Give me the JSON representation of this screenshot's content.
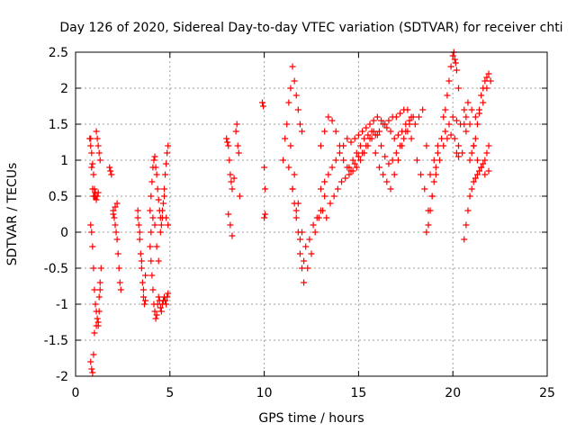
{
  "chart_data": {
    "type": "scatter",
    "title": "Day 126 of 2020, Sidereal Day-to-day VTEC variation (SDTVAR) for receiver chti",
    "xlabel": "GPS time / hours",
    "ylabel": "SDTVAR / TECUs",
    "xlim": [
      0,
      25
    ],
    "ylim": [
      -2,
      2.5
    ],
    "x_ticks": [
      0,
      5,
      10,
      15,
      20,
      25
    ],
    "x_tick_labels": [
      "0",
      "5",
      "10",
      "15",
      "20",
      "25"
    ],
    "y_ticks": [
      -2,
      -1.5,
      -1,
      -0.5,
      0,
      0.5,
      1,
      1.5,
      2,
      2.5
    ],
    "y_tick_labels": [
      "-2",
      "-1.5",
      "-1",
      "-0.5",
      "0",
      "0.5",
      "1",
      "1.5",
      "2",
      "2.5"
    ],
    "grid": true,
    "marker": "+",
    "series": [
      {
        "name": "SDTVAR",
        "color": "#ff0000",
        "x": [
          0.8,
          0.85,
          0.9,
          0.95,
          1.0,
          1.05,
          1.1,
          1.15,
          1.2,
          1.25,
          1.3,
          0.75,
          0.8,
          0.85,
          0.9,
          0.95,
          1.0,
          1.05,
          1.1,
          1.15,
          1.2,
          0.8,
          0.85,
          0.9,
          0.95,
          1.0,
          1.05,
          1.1,
          1.15,
          1.2,
          1.25,
          1.3,
          1.35,
          0.8,
          0.85,
          0.9,
          0.95,
          1.0,
          1.1,
          1.2,
          1.25,
          1.3,
          1.8,
          1.9,
          2.0,
          2.05,
          2.1,
          2.15,
          2.2,
          2.25,
          2.3,
          2.35,
          2.4,
          1.85,
          2.0,
          2.1,
          2.2,
          3.3,
          3.35,
          3.4,
          3.45,
          3.5,
          3.55,
          3.6,
          3.65,
          3.7,
          3.3,
          3.4,
          3.5,
          3.6,
          3.7,
          3.95,
          4.0,
          4.05,
          4.1,
          4.15,
          4.2,
          4.25,
          4.3,
          4.35,
          4.4,
          4.45,
          4.5,
          4.55,
          4.6,
          4.65,
          4.7,
          4.75,
          4.8,
          4.85,
          4.9,
          3.95,
          4.0,
          4.05,
          4.1,
          4.15,
          4.2,
          4.25,
          4.3,
          4.35,
          4.4,
          4.45,
          4.5,
          4.55,
          4.6,
          4.65,
          4.7,
          4.75,
          4.8,
          4.85,
          4.9,
          4.0,
          4.1,
          4.2,
          4.3,
          4.4,
          4.5,
          4.6,
          4.7,
          4.8,
          4.9,
          8.0,
          8.05,
          8.1,
          8.15,
          8.2,
          8.25,
          8.3,
          8.4,
          8.5,
          8.55,
          8.6,
          8.65,
          8.7,
          8.1,
          8.2,
          8.3,
          9.9,
          9.95,
          10.0,
          10.05,
          10.0,
          10.05,
          11.0,
          11.1,
          11.2,
          11.3,
          11.4,
          11.5,
          11.6,
          11.7,
          11.8,
          11.9,
          12.0,
          11.5,
          11.6,
          11.7,
          11.8,
          11.9,
          12.0,
          12.1,
          11.3,
          11.5,
          11.7,
          11.9,
          12.1,
          12.3,
          12.5,
          12.7,
          12.9,
          13.1,
          11.4,
          11.6,
          11.8,
          12.0,
          12.2,
          12.4,
          12.6,
          12.8,
          13.0,
          13.2,
          13.0,
          13.2,
          13.4,
          13.6,
          13.8,
          14.0,
          14.2,
          14.4,
          14.6,
          14.8,
          15.0,
          15.2,
          15.4,
          15.6,
          15.8,
          16.0,
          16.2,
          16.4,
          16.6,
          16.8,
          17.0,
          17.2,
          17.4,
          17.6,
          17.8,
          13.0,
          13.2,
          13.4,
          13.6,
          13.8,
          14.0,
          14.2,
          14.4,
          14.6,
          14.8,
          15.0,
          15.2,
          15.4,
          15.6,
          15.8,
          16.0,
          16.2,
          16.4,
          16.6,
          16.8,
          17.0,
          17.2,
          17.4,
          17.6,
          17.8,
          13.3,
          13.5,
          13.7,
          13.9,
          14.1,
          14.3,
          14.5,
          14.7,
          14.9,
          15.1,
          15.3,
          15.5,
          15.7,
          15.9,
          16.1,
          16.3,
          16.5,
          16.7,
          16.9,
          17.1,
          17.3,
          17.5,
          17.7,
          14.5,
          14.7,
          14.9,
          15.1,
          15.3,
          15.5,
          15.7,
          15.9,
          16.1,
          16.3,
          16.5,
          16.7,
          16.9,
          17.1,
          17.3,
          17.5,
          17.7,
          17.9,
          18.0,
          18.2,
          18.4,
          18.6,
          18.8,
          19.0,
          19.2,
          19.4,
          19.6,
          19.8,
          20.0,
          20.2,
          20.4,
          20.6,
          20.8,
          21.0,
          21.2,
          21.4,
          21.6,
          21.8,
          18.1,
          18.3,
          18.5,
          18.7,
          18.9,
          19.1,
          19.3,
          19.5,
          19.7,
          19.9,
          20.1,
          20.3,
          20.5,
          20.7,
          20.9,
          21.1,
          21.3,
          21.5,
          21.7,
          21.9,
          19.5,
          19.6,
          19.7,
          19.8,
          19.9,
          20.0,
          20.05,
          20.1,
          20.15,
          20.2,
          20.3,
          20.9,
          21.0,
          21.1,
          21.2,
          21.3,
          21.4,
          21.5,
          21.6,
          21.7,
          21.8,
          21.9,
          22.0,
          20.6,
          20.7,
          20.8,
          20.9,
          21.0,
          21.1,
          21.2,
          21.3,
          21.4,
          21.5,
          21.6,
          21.7,
          21.8,
          21.9,
          18.6,
          18.7,
          18.8,
          18.9,
          19.0,
          19.1,
          19.2,
          20.2,
          20.3,
          20.6,
          20.7
        ],
        "y": [
          1.3,
          0.9,
          0.6,
          0.5,
          0.5,
          0.55,
          1.4,
          1.3,
          1.2,
          1.1,
          1.0,
          1.3,
          1.2,
          1.1,
          0.95,
          0.8,
          0.6,
          0.5,
          0.45,
          0.5,
          0.55,
          0.1,
          0.0,
          -0.2,
          -0.5,
          -0.8,
          -1.0,
          -1.1,
          -1.2,
          -1.3,
          -0.9,
          -0.7,
          -0.5,
          -1.8,
          -1.9,
          -1.95,
          -1.7,
          -1.4,
          -1.3,
          -1.25,
          -1.1,
          -0.8,
          0.9,
          0.8,
          0.25,
          0.2,
          0.1,
          0.0,
          -0.1,
          -0.3,
          -0.5,
          -0.7,
          -0.8,
          0.85,
          0.3,
          0.35,
          0.4,
          0.2,
          0.1,
          -0.1,
          -0.3,
          -0.5,
          -0.7,
          -0.9,
          -1.0,
          -0.6,
          0.3,
          0.0,
          -0.4,
          -0.8,
          -0.95,
          0.3,
          0.5,
          0.7,
          0.9,
          1.0,
          1.05,
          0.9,
          0.8,
          0.6,
          0.45,
          0.3,
          0.2,
          0.1,
          0.2,
          0.4,
          0.6,
          0.8,
          0.95,
          1.1,
          1.2,
          -0.2,
          -0.4,
          -0.6,
          -0.8,
          -1.0,
          -1.1,
          -1.2,
          -1.15,
          -1.0,
          -0.9,
          -0.95,
          -1.05,
          -1.1,
          -1.0,
          -0.95,
          -0.9,
          -0.95,
          -1.0,
          -0.9,
          -0.85,
          0.0,
          0.2,
          0.1,
          -0.2,
          -0.4,
          0.0,
          0.3,
          0.5,
          0.2,
          0.1,
          1.3,
          1.25,
          1.2,
          1.0,
          0.8,
          0.7,
          0.6,
          0.75,
          1.4,
          1.5,
          1.2,
          1.1,
          0.5,
          0.25,
          0.1,
          -0.05,
          1.8,
          1.75,
          0.9,
          0.6,
          0.2,
          0.25,
          1.0,
          1.3,
          1.5,
          1.8,
          2.0,
          2.3,
          2.1,
          1.9,
          1.7,
          1.5,
          1.4,
          0.6,
          0.4,
          0.2,
          0.0,
          -0.3,
          -0.5,
          -0.7,
          0.9,
          0.6,
          0.3,
          -0.1,
          -0.4,
          -0.5,
          -0.3,
          0.0,
          0.2,
          0.3,
          1.2,
          0.8,
          0.4,
          0.0,
          -0.2,
          -0.1,
          0.1,
          0.2,
          0.3,
          0.5,
          0.6,
          0.7,
          0.8,
          0.9,
          1.0,
          1.1,
          1.2,
          1.3,
          1.25,
          1.3,
          1.35,
          1.4,
          1.45,
          1.5,
          1.55,
          1.6,
          1.55,
          1.5,
          1.55,
          1.6,
          1.6,
          1.65,
          1.7,
          1.7,
          1.6,
          1.2,
          1.4,
          1.6,
          1.55,
          1.4,
          1.2,
          1.0,
          0.9,
          0.85,
          0.95,
          1.05,
          1.1,
          1.2,
          1.3,
          1.4,
          1.35,
          1.2,
          1.05,
          0.95,
          1.0,
          1.1,
          1.2,
          1.3,
          1.4,
          1.3,
          0.2,
          0.4,
          0.5,
          0.6,
          0.7,
          0.75,
          0.8,
          0.85,
          0.9,
          1.0,
          1.1,
          1.2,
          1.3,
          1.35,
          1.4,
          1.5,
          1.45,
          1.4,
          1.3,
          1.35,
          1.4,
          1.5,
          1.55,
          0.9,
          1.0,
          1.1,
          1.2,
          1.3,
          1.35,
          1.4,
          1.1,
          0.9,
          0.8,
          0.7,
          0.6,
          0.8,
          1.0,
          1.2,
          1.4,
          1.5,
          1.6,
          1.5,
          1.6,
          1.7,
          1.2,
          0.8,
          1.0,
          1.2,
          1.3,
          1.4,
          1.5,
          1.6,
          1.55,
          1.5,
          1.7,
          1.8,
          1.7,
          1.6,
          1.65,
          1.8,
          2.0,
          1.0,
          0.8,
          0.6,
          0.3,
          0.5,
          0.8,
          1.0,
          1.2,
          1.3,
          1.35,
          1.3,
          1.2,
          1.1,
          1.4,
          1.5,
          1.2,
          1.0,
          0.9,
          0.8,
          0.85,
          1.6,
          1.7,
          1.9,
          2.1,
          2.3,
          2.45,
          2.5,
          2.4,
          2.35,
          2.25,
          2.0,
          1.0,
          1.1,
          1.2,
          1.3,
          1.5,
          1.7,
          1.9,
          2.0,
          2.1,
          2.15,
          2.2,
          2.1,
          -0.1,
          0.1,
          0.3,
          0.5,
          0.6,
          0.7,
          0.75,
          0.8,
          0.85,
          0.9,
          0.95,
          1.0,
          1.1,
          1.2,
          0.0,
          0.1,
          0.3,
          0.5,
          0.7,
          0.9,
          1.1,
          1.1,
          1.05,
          1.5,
          1.6
        ]
      }
    ]
  }
}
